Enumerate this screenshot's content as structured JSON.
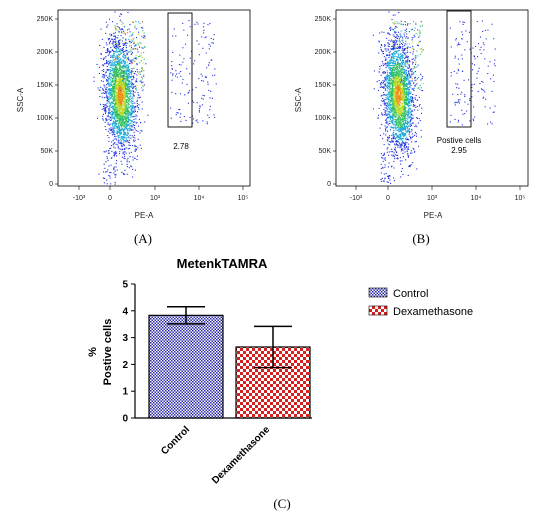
{
  "chart_data": [
    {
      "id": "A",
      "type": "scatter",
      "panel_label": "(A)",
      "xlabel": "PE-A",
      "ylabel": "SSC-A",
      "x_ticks": [
        "-10³",
        "0",
        "10³",
        "10⁴",
        "10⁵"
      ],
      "y_ticks": [
        "0",
        "50K",
        "100K",
        "150K",
        "200K",
        "250K"
      ],
      "ylim": [
        0,
        262144
      ],
      "gate": {
        "label": "",
        "value": "2.78"
      }
    },
    {
      "id": "B",
      "type": "scatter",
      "panel_label": "(B)",
      "xlabel": "PE-A",
      "ylabel": "SSC-A",
      "x_ticks": [
        "-10³",
        "0",
        "10³",
        "10⁴",
        "10⁵"
      ],
      "y_ticks": [
        "0",
        "50K",
        "100K",
        "150K",
        "200K",
        "250K"
      ],
      "ylim": [
        0,
        262144
      ],
      "gate": {
        "label": "Postive cells",
        "value": "2.95"
      }
    },
    {
      "id": "C",
      "type": "bar",
      "panel_label": "(C)",
      "title": "MetenkTAMRA",
      "ylabel_lines": [
        "%",
        "Postive cells"
      ],
      "categories": [
        "Control",
        "Dexamethasone"
      ],
      "values": [
        3.83,
        2.65
      ],
      "errors": [
        0.32,
        0.77
      ],
      "ylim": [
        0,
        5
      ],
      "y_ticks": [
        "0",
        "1",
        "2",
        "3",
        "4",
        "5"
      ],
      "legend": [
        "Control",
        "Dexamethasone"
      ],
      "colors": {
        "control": "#2a2aa8",
        "dexamethasone": "#d62020"
      }
    }
  ]
}
